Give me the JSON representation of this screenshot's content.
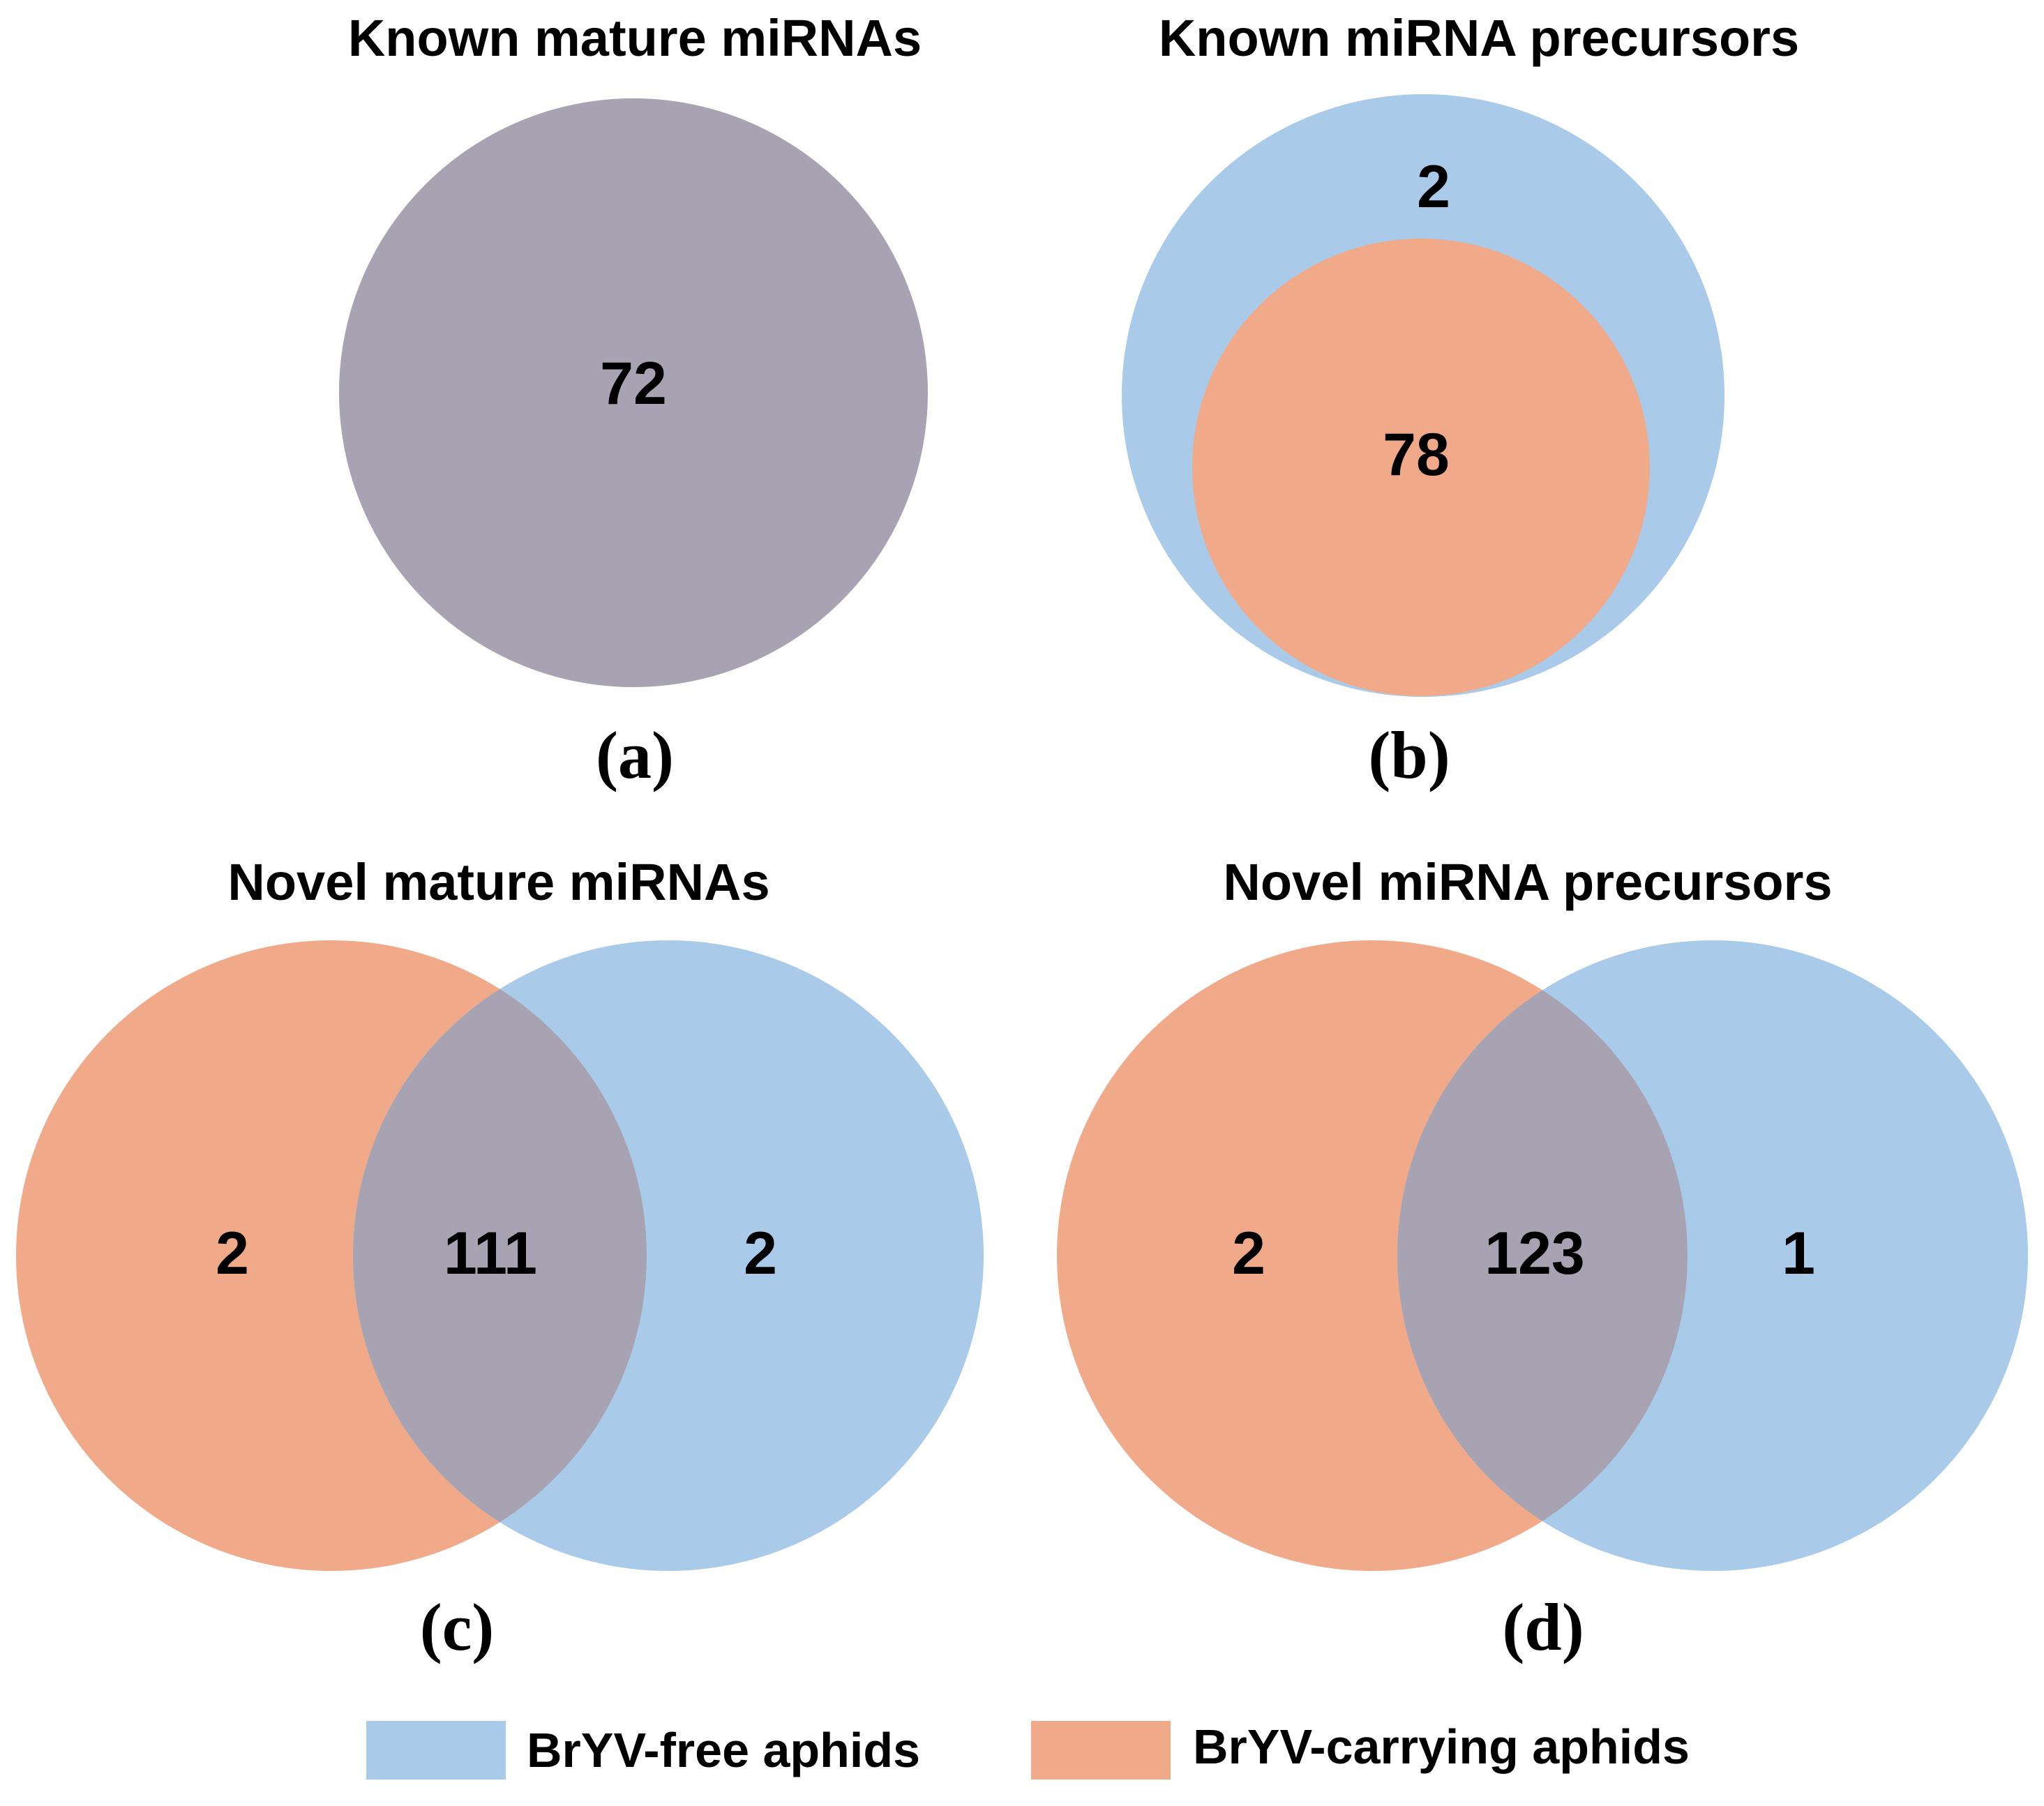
{
  "colors": {
    "bryv_free": "#a9cae8",
    "bryv_carrying": "#f0aa8a",
    "overlap": "#a7a3b2"
  },
  "panels": {
    "a": {
      "title": "Known mature miRNAs",
      "label": "(a)",
      "counts": {
        "all": "72"
      }
    },
    "b": {
      "title": "Known miRNA precursors",
      "label": "(b)",
      "counts": {
        "free_only": "2",
        "shared": "78"
      }
    },
    "c": {
      "title": "Novel mature miRNAs",
      "label": "(c)",
      "counts": {
        "carrying_only": "2",
        "shared": "111",
        "free_only": "2"
      }
    },
    "d": {
      "title": "Novel miRNA precursors",
      "label": "(d)",
      "counts": {
        "carrying_only": "2",
        "shared": "123",
        "free_only": "1"
      }
    }
  },
  "legend": {
    "bryv_free": "BrYV-free aphids",
    "bryv_carrying": "BrYV-carrying aphids"
  }
}
